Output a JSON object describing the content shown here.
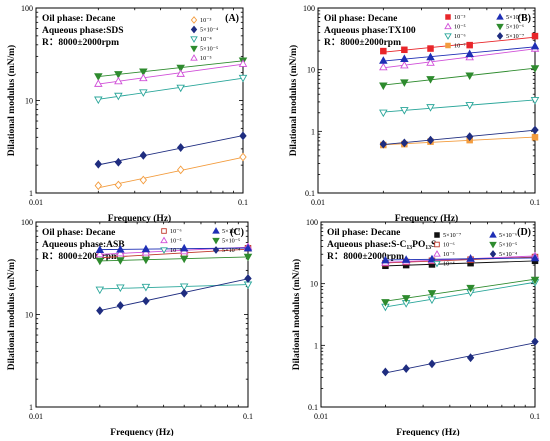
{
  "chart_data": [
    {
      "type": "scatter",
      "panel": "(A)",
      "title_lines": [
        "Oil phase: Decane",
        "Aqueous phase:SDS",
        "R：8000±2000rpm"
      ],
      "xlabel": "Frequency (Hz)",
      "ylabel": "Dilational modulus (mN/m)",
      "xscale": "log",
      "yscale": "log",
      "xlim": [
        0.01,
        0.1
      ],
      "ylim": [
        1,
        100
      ],
      "xticks": [
        "0.01",
        "0.1"
      ],
      "yticks": [
        "1",
        "10",
        "100"
      ],
      "x": [
        0.02,
        0.025,
        0.033,
        0.05,
        0.1
      ],
      "legend_cols": 1,
      "series": [
        {
          "name": "10⁻³",
          "marker": "diamond-open",
          "color": "#f39c3e",
          "values": [
            1.2,
            1.22,
            1.38,
            1.78,
            2.45
          ]
        },
        {
          "name": "5×10⁻⁴",
          "marker": "diamond-filled",
          "color": "#1f2d80",
          "values": [
            2.05,
            2.15,
            2.55,
            3.1,
            4.15
          ]
        },
        {
          "name": "10⁻⁴",
          "marker": "triangle-down-open",
          "color": "#2aa69a",
          "values": [
            10.2,
            11.2,
            12.2,
            13.7,
            17.5
          ]
        },
        {
          "name": "5×10⁻⁵",
          "marker": "triangle-down-filled",
          "color": "#2e8b2e",
          "values": [
            18.2,
            19.2,
            20.5,
            22.5,
            27
          ]
        },
        {
          "name": "10⁻⁵",
          "marker": "triangle-up-open",
          "color": "#d04fd8",
          "values": [
            15.2,
            16.2,
            17.5,
            19.5,
            25
          ]
        }
      ]
    },
    {
      "type": "scatter",
      "panel": "(B)",
      "title_lines": [
        "Oil phase: Decane",
        "Aqueous phase:TX100",
        "R：8000±2000rpm"
      ],
      "xlabel": "Frequency (Hz)",
      "ylabel": "Dilational modulus (mN/m)",
      "xscale": "log",
      "yscale": "log",
      "xlim": [
        0.01,
        0.1
      ],
      "ylim": [
        0.1,
        100
      ],
      "xticks": [
        "0.01",
        "0.1"
      ],
      "yticks": [
        "0.1",
        "1",
        "10",
        "100"
      ],
      "x": [
        0.02,
        0.025,
        0.033,
        0.05,
        0.1
      ],
      "legend_cols": 2,
      "series": [
        {
          "name": "10⁻³",
          "marker": "square-filled",
          "color": "#e8262a",
          "values": [
            20,
            21,
            22,
            25,
            35
          ]
        },
        {
          "name": "10⁻⁵",
          "marker": "triangle-up-open",
          "color": "#d04fd8",
          "values": [
            11,
            11.8,
            13,
            16,
            22
          ]
        },
        {
          "name": "10⁻⁶",
          "marker": "triangle-down-open",
          "color": "#2aa69a",
          "values": [
            2,
            2.2,
            2.45,
            2.65,
            3.2
          ]
        },
        {
          "name": "10⁻⁷",
          "marker": "square-filled",
          "color": "#f39c3e",
          "values": [
            0.6,
            0.62,
            0.68,
            0.72,
            0.8
          ]
        },
        {
          "name": "5×10⁻⁵",
          "marker": "triangle-up-filled",
          "color": "#1f2fb5",
          "values": [
            14,
            15,
            16,
            18,
            24
          ]
        },
        {
          "name": "5×10⁻⁶",
          "marker": "triangle-down-filled",
          "color": "#2e8b2e",
          "values": [
            5.5,
            6.2,
            7,
            8,
            10.5
          ]
        },
        {
          "name": "5×10⁻⁷",
          "marker": "diamond-filled",
          "color": "#1f2d80",
          "values": [
            0.62,
            0.65,
            0.72,
            0.82,
            1.05
          ]
        }
      ]
    },
    {
      "type": "scatter",
      "panel": "(C)",
      "title_lines": [
        "Oil phase: Decane",
        "Aqueous phase:ASB",
        "R：8000±2000rpm"
      ],
      "xlabel": "Frequency (Hz)",
      "ylabel": "Dilational modulus (mN/m)",
      "xscale": "log",
      "yscale": "log",
      "xlim": [
        0.01,
        0.1
      ],
      "ylim": [
        1,
        100
      ],
      "xticks": [
        "0.01",
        "0.1"
      ],
      "yticks": [
        "1",
        "10",
        "100"
      ],
      "x": [
        0.02,
        0.025,
        0.033,
        0.05,
        0.1
      ],
      "legend_cols": 2,
      "series": [
        {
          "name": "10⁻⁶",
          "marker": "square-open",
          "color": "#c0392b",
          "values": [
            42,
            42.5,
            43,
            45,
            52
          ]
        },
        {
          "name": "10⁻⁵",
          "marker": "triangle-up-open",
          "color": "#d04fd8",
          "values": [
            45,
            46,
            47,
            48.5,
            54
          ]
        },
        {
          "name": "10⁻⁴",
          "marker": "triangle-down-open",
          "color": "#2aa69a",
          "values": [
            18.5,
            19.5,
            19.8,
            20,
            21
          ]
        },
        {
          "name": "5×10⁻⁶",
          "marker": "triangle-up-filled",
          "color": "#1f2fb5",
          "values": [
            50,
            50.5,
            51,
            52,
            52
          ]
        },
        {
          "name": "5×10⁻⁵",
          "marker": "triangle-down-filled",
          "color": "#2e8b2e",
          "values": [
            38,
            38.5,
            39,
            40,
            42
          ]
        },
        {
          "name": "5×10⁻⁴",
          "marker": "diamond-filled",
          "color": "#1f2d80",
          "values": [
            11,
            12.5,
            14,
            17,
            24.5
          ]
        }
      ]
    },
    {
      "type": "scatter",
      "panel": "(D)",
      "title_lines": [
        "Oil phase: Decane",
        "Aqueous phase:S-C₁₃PO₁₃S",
        "R：8000±2000rpm"
      ],
      "xlabel": "Frequency (Hz)",
      "ylabel": "Dilational modulus (mN/m)",
      "xscale": "log",
      "yscale": "log",
      "xlim": [
        0.01,
        0.1
      ],
      "ylim": [
        0.1,
        100
      ],
      "xticks": [
        "0.01",
        "0.1"
      ],
      "yticks": [
        "0.1",
        "1",
        "10",
        "100"
      ],
      "x": [
        0.02,
        0.025,
        0.033,
        0.05,
        0.1
      ],
      "legend_cols": 2,
      "series": [
        {
          "name": "5×10⁻⁷",
          "marker": "square-filled",
          "color": "#111111",
          "values": [
            19.5,
            20,
            20.5,
            21.5,
            23.5
          ]
        },
        {
          "name": "10⁻⁶",
          "marker": "square-open",
          "color": "#c0392b",
          "values": [
            21.5,
            22.5,
            23.5,
            24.5,
            27
          ]
        },
        {
          "name": "10⁻⁵",
          "marker": "triangle-up-open",
          "color": "#d04fd8",
          "values": [
            22,
            23,
            24,
            25.5,
            28
          ]
        },
        {
          "name": "10⁻⁴",
          "marker": "triangle-down-open",
          "color": "#2aa69a",
          "values": [
            4.2,
            4.8,
            5.5,
            7.2,
            10.5
          ]
        },
        {
          "name": "5×10⁻⁶",
          "marker": "triangle-up-filled",
          "color": "#1f2fb5",
          "values": [
            24,
            24.5,
            25,
            25.5,
            26
          ]
        },
        {
          "name": "5×10⁻⁵",
          "marker": "triangle-down-filled",
          "color": "#2e8b2e",
          "values": [
            5,
            5.8,
            7,
            8.5,
            11.5
          ]
        },
        {
          "name": "5×10⁻⁴",
          "marker": "diamond-filled",
          "color": "#1f2d80",
          "values": [
            0.37,
            0.42,
            0.5,
            0.63,
            1.15
          ]
        }
      ]
    }
  ]
}
